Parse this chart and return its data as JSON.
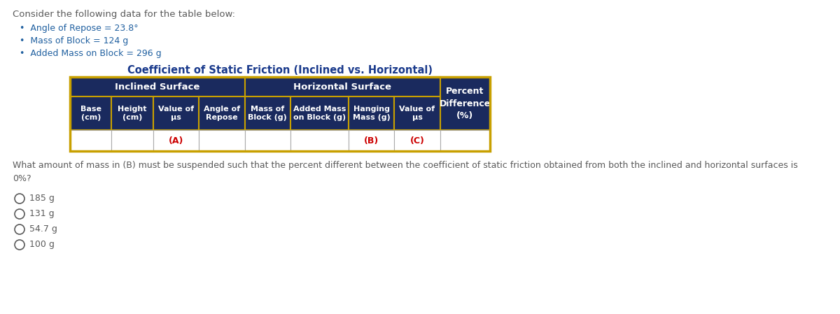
{
  "bg_color": "#ffffff",
  "title_text": "Consider the following data for the table below:",
  "bullets": [
    "Angle of Repose = 23.8°",
    "Mass of Block = 124 g",
    "Added Mass on Block = 296 g"
  ],
  "table_title": "Coefficient of Static Friction (Inclined vs. Horizontal)",
  "table_header_bg": "#1a2a5e",
  "table_header_text_color": "#ffffff",
  "table_border_color": "#c8a000",
  "table_data_bg": "#ffffff",
  "table_data_text_color": "#000000",
  "red_label_color": "#cc0000",
  "col_groups": [
    {
      "label": "Inclined Surface",
      "span": 4
    },
    {
      "label": "Horizontal Surface",
      "span": 4
    },
    {
      "label": "Percent\nDifference\n(%)",
      "span": 1
    }
  ],
  "col_headers": [
    "Base\n(cm)",
    "Height\n(cm)",
    "Value of\nμs",
    "Angle of\nRepose",
    "Mass of\nBlock (g)",
    "Added Mass\non Block (g)",
    "Hanging\nMass (g)",
    "Value of\nμs",
    ""
  ],
  "col_labels": [
    "",
    "",
    "(A)",
    "",
    "",
    "",
    "(B)",
    "(C)",
    ""
  ],
  "col_label_is_red": [
    false,
    false,
    true,
    false,
    false,
    false,
    true,
    true,
    false
  ],
  "question_text": "What amount of mass in (B) must be suspended such that the percent different between the coefficient of static friction obtained from both the inclined and horizontal surfaces is\n0%?",
  "choices": [
    "185 g",
    "131 g",
    "54.7 g",
    "100 g"
  ],
  "text_color": "#5a5a5a",
  "title_color": "#1a3a8c",
  "bullet_color": "#2060a0"
}
